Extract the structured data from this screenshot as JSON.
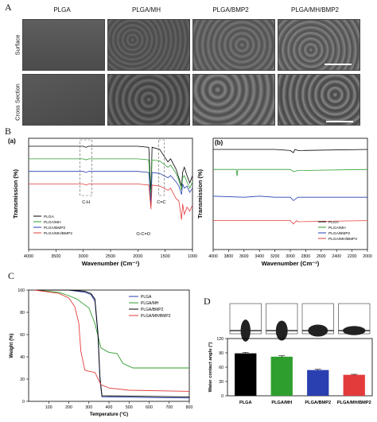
{
  "panels": {
    "A": "A",
    "B": "B",
    "C": "C",
    "D": "D"
  },
  "panel_a": {
    "columns": [
      "PLGA",
      "PLGA/MH",
      "PLGA/BMP2",
      "PLGA/MH/BMP2"
    ],
    "rows": [
      "Surface",
      "Cross Section"
    ]
  },
  "chart_data": [
    {
      "id": "ftir_a",
      "type": "line",
      "panel_label": "(a)",
      "xlabel": "Wavenumber (Cm⁻¹)",
      "ylabel": "Transmission (%)",
      "xlim": [
        4000,
        1000
      ],
      "x_ticks": [
        4000,
        3500,
        3000,
        2500,
        2000,
        1500,
        1000
      ],
      "legend": [
        "PLGA",
        "PLGA/MH",
        "PLGA/BMP2",
        "PLGA/MH/BMP2"
      ],
      "colors": [
        "#000000",
        "#2e9e2e",
        "#2a3fb0",
        "#e33b3b"
      ],
      "annotations": [
        "C-H",
        "C=C",
        "O-C=O"
      ],
      "series": [
        {
          "name": "PLGA",
          "x": [
            4000,
            3000,
            2950,
            2900,
            2000,
            1800,
            1760,
            1740,
            1600,
            1450,
            1400,
            1300,
            1250,
            1200,
            1180,
            1150,
            1100,
            1050,
            1000
          ],
          "y": [
            100,
            100,
            99,
            100,
            100,
            99,
            55,
            99,
            97,
            85,
            88,
            78,
            70,
            62,
            75,
            80,
            72,
            65,
            72
          ]
        },
        {
          "name": "PLGA/MH",
          "x": [
            4000,
            3000,
            2950,
            2900,
            2000,
            1800,
            1760,
            1740,
            1600,
            1450,
            1400,
            1300,
            1250,
            1200,
            1180,
            1150,
            1100,
            1050,
            1000
          ],
          "y": [
            88,
            88,
            87,
            88,
            88,
            87,
            50,
            87,
            86,
            80,
            82,
            74,
            68,
            58,
            70,
            72,
            66,
            60,
            66
          ]
        },
        {
          "name": "PLGA/BMP2",
          "x": [
            4000,
            3000,
            2950,
            2900,
            2000,
            1800,
            1760,
            1740,
            1600,
            1450,
            1400,
            1300,
            1250,
            1200,
            1180,
            1150,
            1100,
            1050,
            1000
          ],
          "y": [
            76,
            76,
            75,
            76,
            76,
            75,
            44,
            75,
            74,
            70,
            72,
            66,
            62,
            54,
            64,
            60,
            62,
            56,
            60
          ]
        },
        {
          "name": "PLGA/MH/BMP2",
          "x": [
            4000,
            3000,
            2950,
            2900,
            2000,
            1800,
            1760,
            1740,
            1600,
            1450,
            1400,
            1300,
            1250,
            1200,
            1180,
            1150,
            1100,
            1050,
            1000
          ],
          "y": [
            64,
            64,
            63,
            64,
            64,
            63,
            40,
            63,
            62,
            58,
            60,
            50,
            48,
            30,
            45,
            35,
            42,
            38,
            44
          ]
        }
      ]
    },
    {
      "id": "ftir_b",
      "type": "line",
      "panel_label": "(b)",
      "xlabel": "Wavenumber (Cm⁻¹)",
      "ylabel": "Transmission (%)",
      "xlim": [
        4000,
        2000
      ],
      "x_ticks": [
        4000,
        3800,
        3600,
        3400,
        3200,
        3000,
        2800,
        2600,
        2400,
        2200,
        2000
      ],
      "legend": [
        "PLGA",
        "PLGA/MH",
        "PLGA/BMP2",
        "PLGA/MH/BMP2"
      ],
      "colors": [
        "#000000",
        "#2e9e2e",
        "#2a3fb0",
        "#e33b3b"
      ],
      "series": [
        {
          "name": "PLGA",
          "x": [
            4000,
            3200,
            3000,
            2960,
            2940,
            2900,
            2000
          ],
          "y": [
            100,
            100,
            99,
            97,
            100,
            99,
            100
          ]
        },
        {
          "name": "PLGA/MH",
          "x": [
            4000,
            3700,
            3690,
            3680,
            3000,
            2960,
            2900,
            2000
          ],
          "y": [
            82,
            82,
            76,
            82,
            82,
            80,
            81,
            82
          ]
        },
        {
          "name": "PLGA/BMP2",
          "x": [
            4000,
            3600,
            3400,
            3200,
            3000,
            2960,
            2900,
            2600,
            2000
          ],
          "y": [
            58,
            57,
            58,
            57,
            57,
            54,
            57,
            57,
            57
          ]
        },
        {
          "name": "PLGA/MH/BMP2",
          "x": [
            4000,
            3200,
            3000,
            2960,
            2920,
            2900,
            2000
          ],
          "y": [
            36,
            36,
            36,
            33,
            36,
            35,
            36
          ]
        }
      ]
    },
    {
      "id": "tga",
      "type": "line",
      "panel_label": "C",
      "xlabel": "Temperature (°C)",
      "ylabel": "Weight (%)",
      "xlim": [
        0,
        800
      ],
      "ylim": [
        0,
        100
      ],
      "x_ticks": [
        100,
        200,
        300,
        400,
        500,
        600,
        700,
        800
      ],
      "y_ticks": [
        0,
        20,
        40,
        60,
        80,
        100
      ],
      "legend": [
        "PLGA",
        "PLGA/MH",
        "PLGA/BMP2",
        "PLGA/MH/BMP2"
      ],
      "colors": [
        "#2a3fb0",
        "#2e9e2e",
        "#000000",
        "#e33b3b"
      ],
      "series": [
        {
          "name": "PLGA",
          "x": [
            30,
            200,
            280,
            310,
            330,
            345,
            355,
            365,
            800
          ],
          "y": [
            100,
            100,
            98,
            96,
            90,
            60,
            20,
            4,
            3
          ]
        },
        {
          "name": "PLGA/MH",
          "x": [
            30,
            150,
            200,
            240,
            270,
            300,
            330,
            360,
            400,
            440,
            470,
            520,
            800
          ],
          "y": [
            100,
            98,
            95,
            92,
            88,
            84,
            70,
            48,
            44,
            43,
            34,
            30,
            30
          ]
        },
        {
          "name": "PLGA/BMP2",
          "x": [
            30,
            200,
            280,
            310,
            330,
            345,
            355,
            365,
            800
          ],
          "y": [
            100,
            100,
            99,
            97,
            92,
            62,
            22,
            5,
            4
          ]
        },
        {
          "name": "PLGA/MH/BMP2",
          "x": [
            30,
            150,
            200,
            230,
            250,
            260,
            280,
            300,
            330,
            360,
            400,
            500,
            800
          ],
          "y": [
            100,
            97,
            93,
            85,
            70,
            45,
            28,
            27,
            26,
            15,
            12,
            10,
            9
          ]
        }
      ]
    },
    {
      "id": "contact_angle",
      "type": "bar",
      "panel_label": "D",
      "ylabel": "Water contact angle (°)",
      "ylim": [
        0,
        120
      ],
      "y_ticks": [
        0,
        30,
        60,
        90,
        120
      ],
      "categories": [
        "PLGA",
        "PLGA/MH",
        "PLGA/BMP2",
        "PLGA/MH/BMP2"
      ],
      "values": [
        89,
        82,
        54,
        44
      ],
      "errors": [
        2,
        2,
        1.5,
        1
      ],
      "colors": [
        "#000000",
        "#2e9e2e",
        "#2a3fb0",
        "#e33b3b"
      ]
    }
  ]
}
